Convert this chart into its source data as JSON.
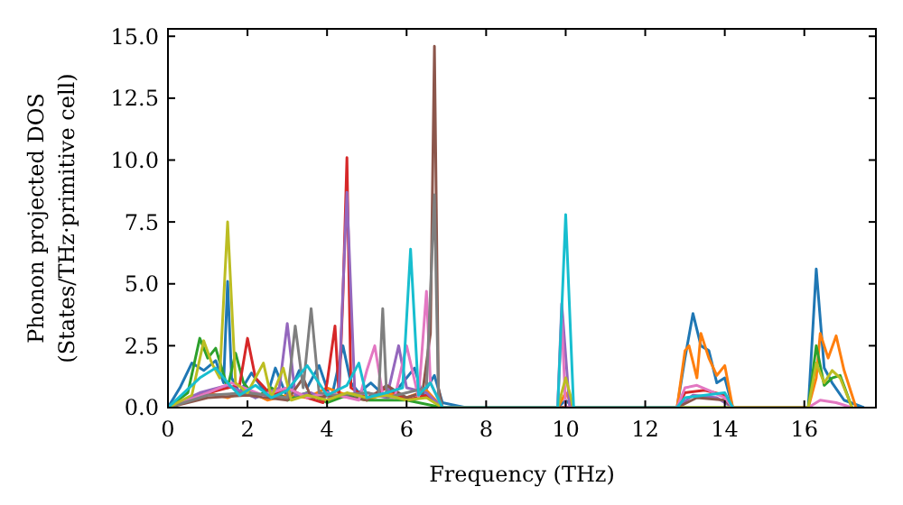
{
  "chart_data": {
    "type": "line",
    "xlabel": "Frequency (THz)",
    "ylabel": "Phonon projected DOS\n(States/THz·primitive cell)",
    "xlim": [
      0,
      17.8
    ],
    "ylim": [
      0,
      15.3
    ],
    "xticks": [
      0,
      2,
      4,
      6,
      8,
      10,
      12,
      14,
      16
    ],
    "yticks": [
      {
        "value": 0,
        "label": "0.0"
      },
      {
        "value": 2.5,
        "label": "2.5"
      },
      {
        "value": 5,
        "label": "5.0"
      },
      {
        "value": 7.5,
        "label": "7.5"
      },
      {
        "value": 10,
        "label": "10.0"
      },
      {
        "value": 12.5,
        "label": "12.5"
      },
      {
        "value": 15,
        "label": "15.0"
      }
    ],
    "grid": false,
    "line_style": "solid",
    "series": [
      {
        "color": "#1f77b4",
        "x": [
          0,
          0.3,
          0.6,
          0.9,
          1.2,
          1.4,
          1.5,
          1.6,
          1.8,
          2.1,
          2.5,
          2.7,
          3.0,
          3.3,
          3.5,
          3.8,
          4.1,
          4.4,
          4.6,
          4.8,
          5.1,
          5.5,
          5.8,
          6.2,
          6.4,
          6.7,
          6.9,
          7.5,
          9.8,
          10.0,
          10.2,
          12.8,
          13.0,
          13.2,
          13.4,
          13.6,
          13.8,
          14.0,
          14.2,
          16.1,
          16.3,
          16.5,
          16.7,
          17.0,
          17.5
        ],
        "values": [
          0,
          0.8,
          1.8,
          1.5,
          1.9,
          1.0,
          5.1,
          1.2,
          0.6,
          1.4,
          0.5,
          1.6,
          0.4,
          1.5,
          0.8,
          1.7,
          0.3,
          2.5,
          1.0,
          0.6,
          1.0,
          0.4,
          0.8,
          1.6,
          0.5,
          1.3,
          0.2,
          0,
          0,
          0.3,
          0,
          0,
          2.0,
          3.8,
          2.5,
          2.3,
          1.0,
          1.2,
          0,
          0,
          5.6,
          1.6,
          1.0,
          0.3,
          0
        ]
      },
      {
        "color": "#ff7f0e",
        "x": [
          1.0,
          1.5,
          2.0,
          2.5,
          3.0,
          3.5,
          4.0,
          4.5,
          5.0,
          5.5,
          6.0,
          6.5,
          6.9,
          7.5,
          9.8,
          10.0,
          10.2,
          12.8,
          13.0,
          13.1,
          13.3,
          13.4,
          13.6,
          13.8,
          14.0,
          14.2,
          16.1,
          16.3,
          16.4,
          16.6,
          16.8,
          17.0,
          17.3
        ],
        "values": [
          0.6,
          0.4,
          0.7,
          0.3,
          0.5,
          0.4,
          0.8,
          0.5,
          0.3,
          0.6,
          0.4,
          0.7,
          0,
          0,
          0,
          0.6,
          0,
          0,
          2.3,
          2.5,
          1.2,
          3.0,
          2.0,
          1.3,
          1.7,
          0,
          0,
          1.2,
          3.0,
          2.0,
          2.9,
          1.5,
          0
        ]
      },
      {
        "color": "#2ca02c",
        "x": [
          0,
          0.5,
          0.8,
          1.0,
          1.2,
          1.5,
          1.7,
          1.9,
          2.2,
          2.6,
          3.0,
          3.5,
          4.0,
          4.5,
          5.0,
          6.0,
          6.9,
          16.1,
          16.3,
          16.5,
          16.7,
          16.9,
          17.2
        ],
        "values": [
          0,
          0.6,
          2.8,
          2.0,
          2.4,
          0.8,
          2.2,
          1.0,
          0.4,
          0.8,
          0.3,
          0.6,
          0.2,
          0.5,
          0.3,
          0.3,
          0,
          0,
          2.5,
          0.9,
          1.2,
          1.3,
          0
        ]
      },
      {
        "color": "#d62728",
        "x": [
          0,
          0.8,
          1.5,
          1.8,
          2.0,
          2.2,
          2.6,
          3.0,
          3.5,
          3.9,
          4.0,
          4.2,
          4.3,
          4.4,
          4.5,
          4.6,
          5.0,
          5.5,
          6.0,
          6.5,
          6.9,
          12.8,
          13.0,
          13.5,
          14.0,
          14.2
        ],
        "values": [
          0,
          0.5,
          0.8,
          0.9,
          2.8,
          1.2,
          0.5,
          0.8,
          0.4,
          0.2,
          1.0,
          3.3,
          0.5,
          4.5,
          10.1,
          0.8,
          0.4,
          0.8,
          0.3,
          0.5,
          0,
          0,
          0.6,
          0.7,
          0.5,
          0
        ]
      },
      {
        "color": "#9467bd",
        "x": [
          0,
          0.8,
          1.5,
          2.2,
          2.8,
          3.0,
          3.2,
          3.6,
          4.0,
          4.3,
          4.5,
          4.7,
          5.0,
          5.5,
          5.8,
          6.0,
          6.5,
          6.9,
          9.8,
          9.9,
          10.1,
          12.8,
          13.2,
          13.8,
          14.2
        ],
        "values": [
          0,
          0.6,
          0.9,
          0.4,
          0.8,
          3.4,
          0.5,
          0.6,
          0.3,
          0.8,
          8.7,
          0.5,
          0.6,
          0.4,
          2.5,
          0.8,
          0.6,
          0,
          0,
          4.2,
          0,
          0,
          0.5,
          0.4,
          0
        ]
      },
      {
        "color": "#8c564b",
        "x": [
          0,
          1.0,
          2.0,
          3.0,
          3.4,
          3.6,
          4.2,
          5.0,
          5.5,
          6.0,
          6.4,
          6.6,
          6.7,
          6.8,
          6.9,
          12.8,
          13.3,
          14.0,
          14.2
        ],
        "values": [
          0,
          0.4,
          0.5,
          0.3,
          1.2,
          0.4,
          0.5,
          0.3,
          0.9,
          0.4,
          0.6,
          3.0,
          14.6,
          0.8,
          0,
          0,
          0.4,
          0.3,
          0
        ]
      },
      {
        "color": "#e377c2",
        "x": [
          0,
          1.0,
          1.6,
          2.4,
          3.0,
          3.5,
          4.0,
          4.8,
          5.0,
          5.2,
          5.4,
          5.7,
          6.0,
          6.3,
          6.5,
          6.6,
          6.9,
          9.8,
          9.9,
          10.0,
          12.8,
          13.0,
          13.3,
          13.6,
          14.0,
          14.2,
          16.1,
          16.4,
          16.8,
          17.2
        ],
        "values": [
          0,
          0.6,
          1.0,
          0.5,
          0.8,
          0.4,
          0.6,
          0.3,
          1.5,
          2.5,
          0.5,
          0.4,
          2.5,
          0.4,
          4.7,
          1.0,
          0,
          0,
          3.6,
          0,
          0,
          0.8,
          0.9,
          0.7,
          0.4,
          0,
          0,
          0.3,
          0.2,
          0
        ]
      },
      {
        "color": "#7f7f7f",
        "x": [
          0,
          1.0,
          2.0,
          3.0,
          3.2,
          3.4,
          3.6,
          3.8,
          4.2,
          5.0,
          5.3,
          5.4,
          5.5,
          6.0,
          6.5,
          6.7,
          6.8,
          6.9
        ],
        "values": [
          0,
          0.5,
          0.6,
          0.4,
          3.3,
          0.8,
          4.0,
          0.6,
          0.5,
          0.6,
          0.5,
          4.0,
          0.4,
          0.6,
          0.8,
          8.6,
          0.5,
          0
        ]
      },
      {
        "color": "#bcbd22",
        "x": [
          0,
          0.6,
          0.9,
          1.1,
          1.3,
          1.5,
          1.7,
          2.0,
          2.4,
          2.6,
          2.9,
          3.1,
          3.5,
          4.0,
          4.5,
          5.0,
          5.5,
          6.0,
          6.5,
          6.9,
          9.8,
          10.0,
          10.2,
          16.1,
          16.3,
          16.5,
          16.7,
          16.9,
          17.2
        ],
        "values": [
          0,
          0.5,
          2.7,
          1.8,
          1.2,
          7.5,
          1.0,
          0.6,
          1.8,
          0.4,
          1.6,
          0.3,
          0.5,
          0.3,
          0.6,
          0.4,
          0.5,
          0.3,
          0.4,
          0,
          0,
          1.2,
          0,
          0,
          1.8,
          1.0,
          1.5,
          1.2,
          0
        ]
      },
      {
        "color": "#17becf",
        "x": [
          0,
          0.4,
          0.8,
          1.2,
          1.5,
          1.8,
          2.2,
          2.6,
          3.0,
          3.5,
          4.0,
          4.5,
          4.8,
          5.0,
          5.5,
          5.9,
          6.1,
          6.3,
          6.6,
          6.9,
          9.8,
          10.0,
          10.2,
          12.8,
          13.0,
          13.5,
          14.0,
          14.2
        ],
        "values": [
          0,
          0.6,
          1.2,
          1.6,
          1.0,
          0.5,
          0.9,
          0.4,
          0.7,
          1.7,
          0.5,
          0.9,
          1.8,
          0.4,
          0.6,
          0.8,
          6.4,
          0.5,
          1.0,
          0,
          0,
          7.8,
          0,
          0,
          0.4,
          0.5,
          0.6,
          0
        ]
      }
    ]
  }
}
